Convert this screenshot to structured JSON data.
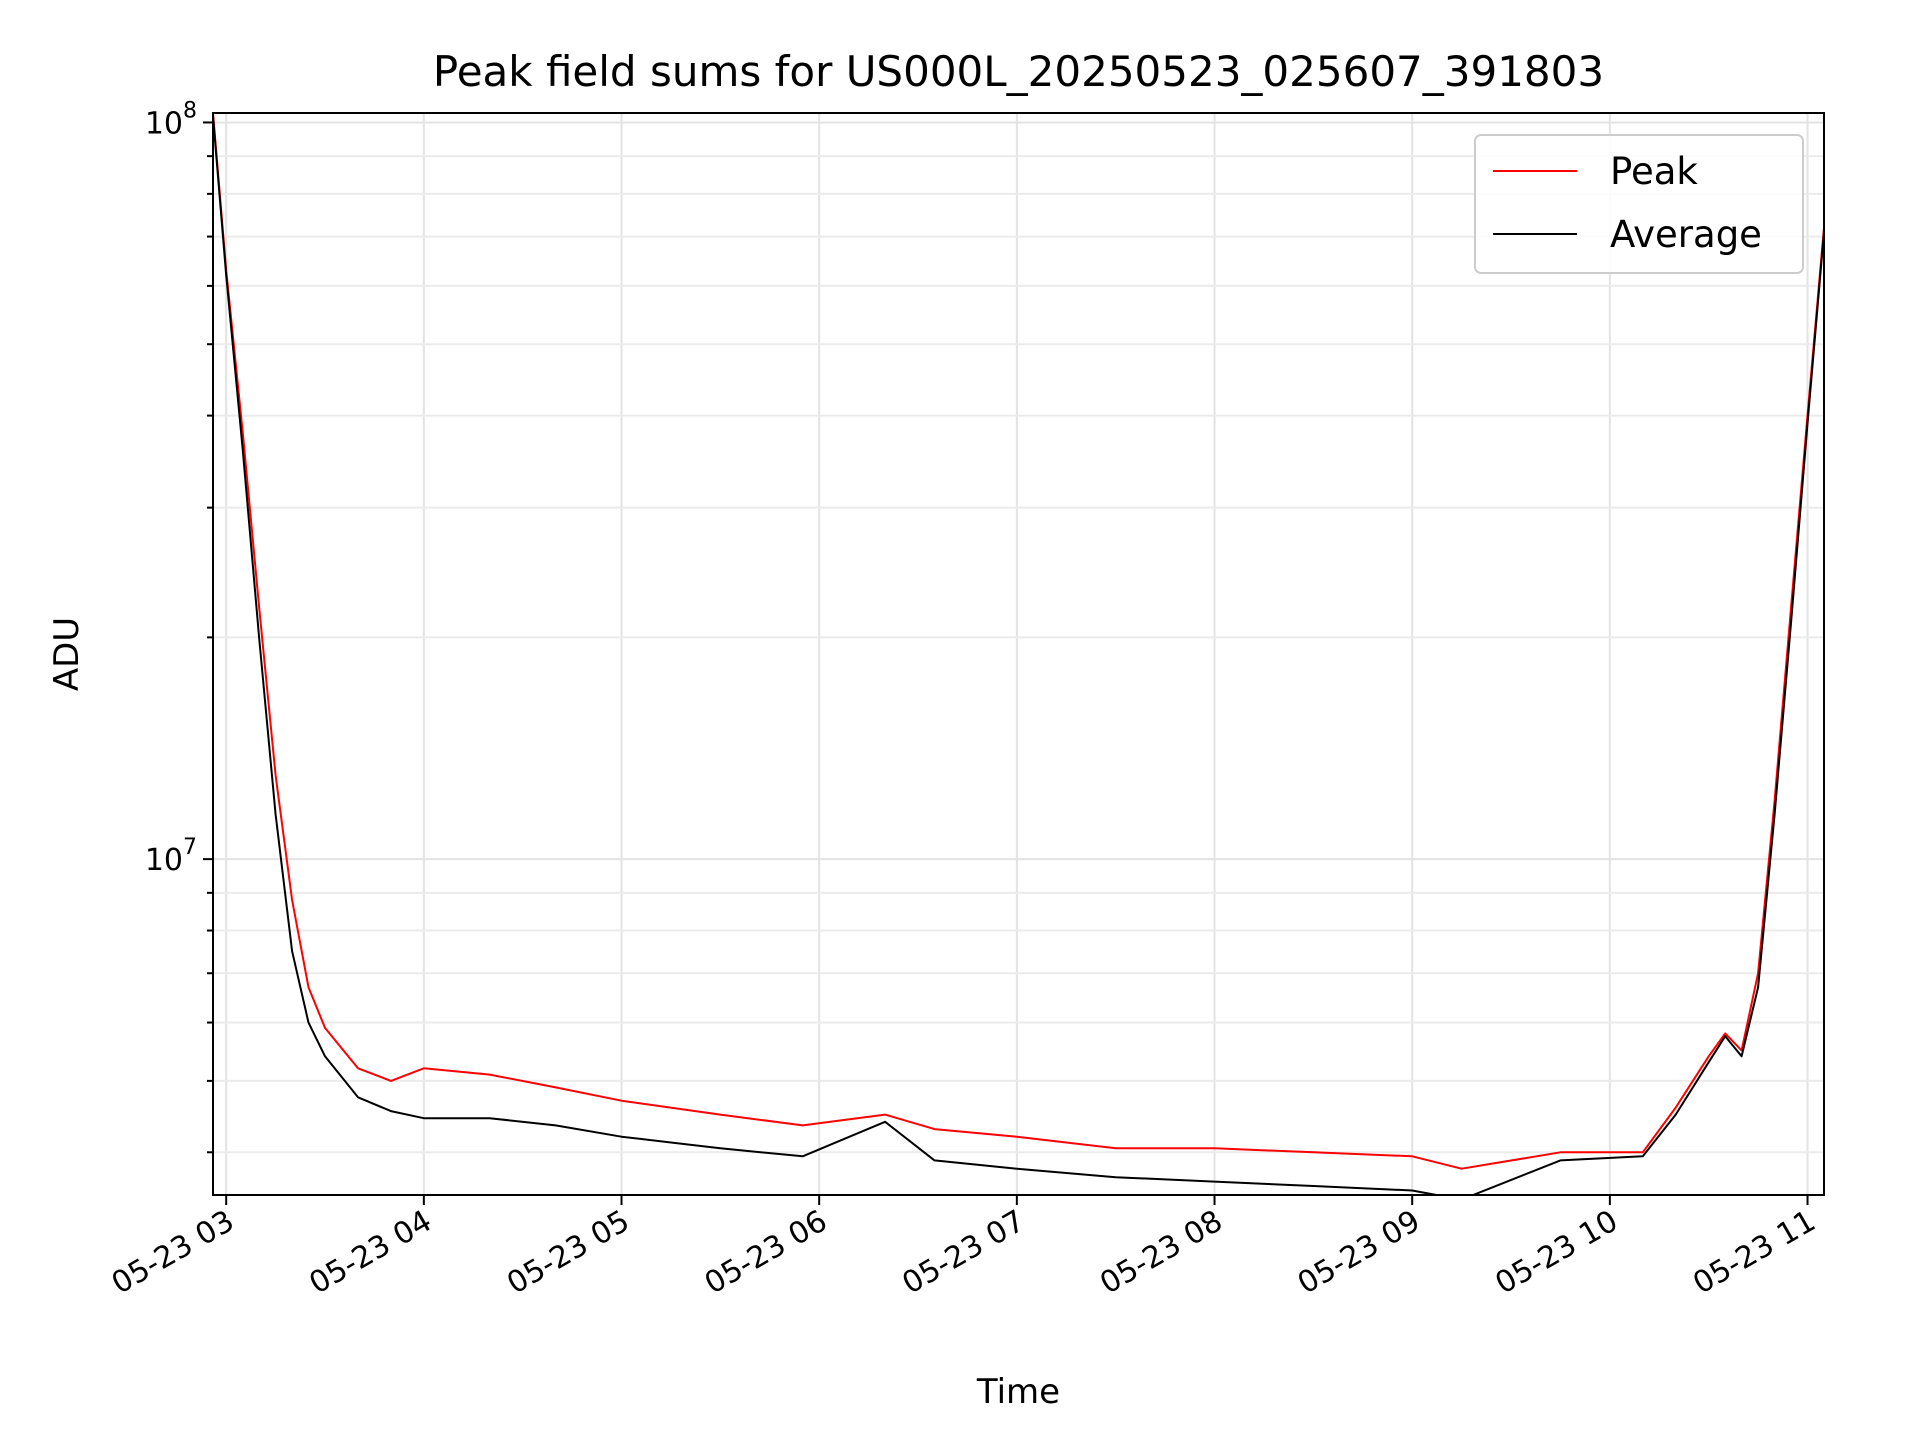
{
  "chart_data": {
    "type": "line",
    "title": "Peak field sums for US000L_20250523_025607_391803",
    "xlabel": "Time",
    "ylabel": "ADU",
    "y_scale": "log",
    "ylim": [
      3500000,
      103000000
    ],
    "xlim": [
      "2025-05-23 02:56",
      "2025-05-23 11:05"
    ],
    "x_ticks": [
      "05-23 03",
      "05-23 04",
      "05-23 05",
      "05-23 06",
      "05-23 07",
      "05-23 08",
      "05-23 09",
      "05-23 10",
      "05-23 11"
    ],
    "x_tick_hours": [
      3,
      4,
      5,
      6,
      7,
      8,
      9,
      10,
      11
    ],
    "y_ticks": [
      {
        "value": 10000000,
        "mantissa": "10",
        "exponent": "7"
      },
      {
        "value": 100000000,
        "mantissa": "10",
        "exponent": "8"
      }
    ],
    "grid": true,
    "legend_position": "top-right",
    "series": [
      {
        "name": "Peak",
        "color": "#ff0000",
        "points": [
          [
            "2025-05-23 02:56",
            103000000
          ],
          [
            "2025-05-23 03:00",
            63000000
          ],
          [
            "2025-05-23 03:05",
            38000000
          ],
          [
            "2025-05-23 03:10",
            22000000
          ],
          [
            "2025-05-23 03:15",
            13000000
          ],
          [
            "2025-05-23 03:20",
            8800000
          ],
          [
            "2025-05-23 03:25",
            6700000
          ],
          [
            "2025-05-23 03:30",
            5900000
          ],
          [
            "2025-05-23 03:40",
            5200000
          ],
          [
            "2025-05-23 03:50",
            5000000
          ],
          [
            "2025-05-23 04:00",
            5200000
          ],
          [
            "2025-05-23 04:20",
            5100000
          ],
          [
            "2025-05-23 04:40",
            4900000
          ],
          [
            "2025-05-23 05:00",
            4700000
          ],
          [
            "2025-05-23 05:30",
            4500000
          ],
          [
            "2025-05-23 05:55",
            4350000
          ],
          [
            "2025-05-23 06:20",
            4500000
          ],
          [
            "2025-05-23 06:35",
            4300000
          ],
          [
            "2025-05-23 07:00",
            4200000
          ],
          [
            "2025-05-23 07:30",
            4050000
          ],
          [
            "2025-05-23 08:00",
            4050000
          ],
          [
            "2025-05-23 08:30",
            4000000
          ],
          [
            "2025-05-23 09:00",
            3950000
          ],
          [
            "2025-05-23 09:15",
            3800000
          ],
          [
            "2025-05-23 09:45",
            4000000
          ],
          [
            "2025-05-23 10:10",
            4000000
          ],
          [
            "2025-05-23 10:20",
            4600000
          ],
          [
            "2025-05-23 10:30",
            5400000
          ],
          [
            "2025-05-23 10:35",
            5800000
          ],
          [
            "2025-05-23 10:40",
            5500000
          ],
          [
            "2025-05-23 10:45",
            7000000
          ],
          [
            "2025-05-23 10:50",
            12000000
          ],
          [
            "2025-05-23 10:55",
            22000000
          ],
          [
            "2025-05-23 11:00",
            40000000
          ],
          [
            "2025-05-23 11:05",
            72000000
          ]
        ]
      },
      {
        "name": "Average",
        "color": "#000000",
        "points": [
          [
            "2025-05-23 02:56",
            102000000
          ],
          [
            "2025-05-23 03:00",
            62000000
          ],
          [
            "2025-05-23 03:05",
            36000000
          ],
          [
            "2025-05-23 03:10",
            20000000
          ],
          [
            "2025-05-23 03:15",
            11500000
          ],
          [
            "2025-05-23 03:20",
            7500000
          ],
          [
            "2025-05-23 03:25",
            6000000
          ],
          [
            "2025-05-23 03:30",
            5400000
          ],
          [
            "2025-05-23 03:40",
            4750000
          ],
          [
            "2025-05-23 03:50",
            4550000
          ],
          [
            "2025-05-23 04:00",
            4450000
          ],
          [
            "2025-05-23 04:20",
            4450000
          ],
          [
            "2025-05-23 04:40",
            4350000
          ],
          [
            "2025-05-23 05:00",
            4200000
          ],
          [
            "2025-05-23 05:30",
            4050000
          ],
          [
            "2025-05-23 05:55",
            3950000
          ],
          [
            "2025-05-23 06:20",
            4400000
          ],
          [
            "2025-05-23 06:35",
            3900000
          ],
          [
            "2025-05-23 07:00",
            3800000
          ],
          [
            "2025-05-23 07:30",
            3700000
          ],
          [
            "2025-05-23 08:00",
            3650000
          ],
          [
            "2025-05-23 08:30",
            3600000
          ],
          [
            "2025-05-23 09:00",
            3550000
          ],
          [
            "2025-05-23 09:15",
            3450000
          ],
          [
            "2025-05-23 09:45",
            3900000
          ],
          [
            "2025-05-23 10:10",
            3950000
          ],
          [
            "2025-05-23 10:20",
            4500000
          ],
          [
            "2025-05-23 10:30",
            5300000
          ],
          [
            "2025-05-23 10:35",
            5750000
          ],
          [
            "2025-05-23 10:40",
            5400000
          ],
          [
            "2025-05-23 10:45",
            6700000
          ],
          [
            "2025-05-23 10:50",
            11500000
          ],
          [
            "2025-05-23 10:55",
            21000000
          ],
          [
            "2025-05-23 11:00",
            39000000
          ],
          [
            "2025-05-23 11:05",
            71000000
          ]
        ]
      }
    ]
  }
}
